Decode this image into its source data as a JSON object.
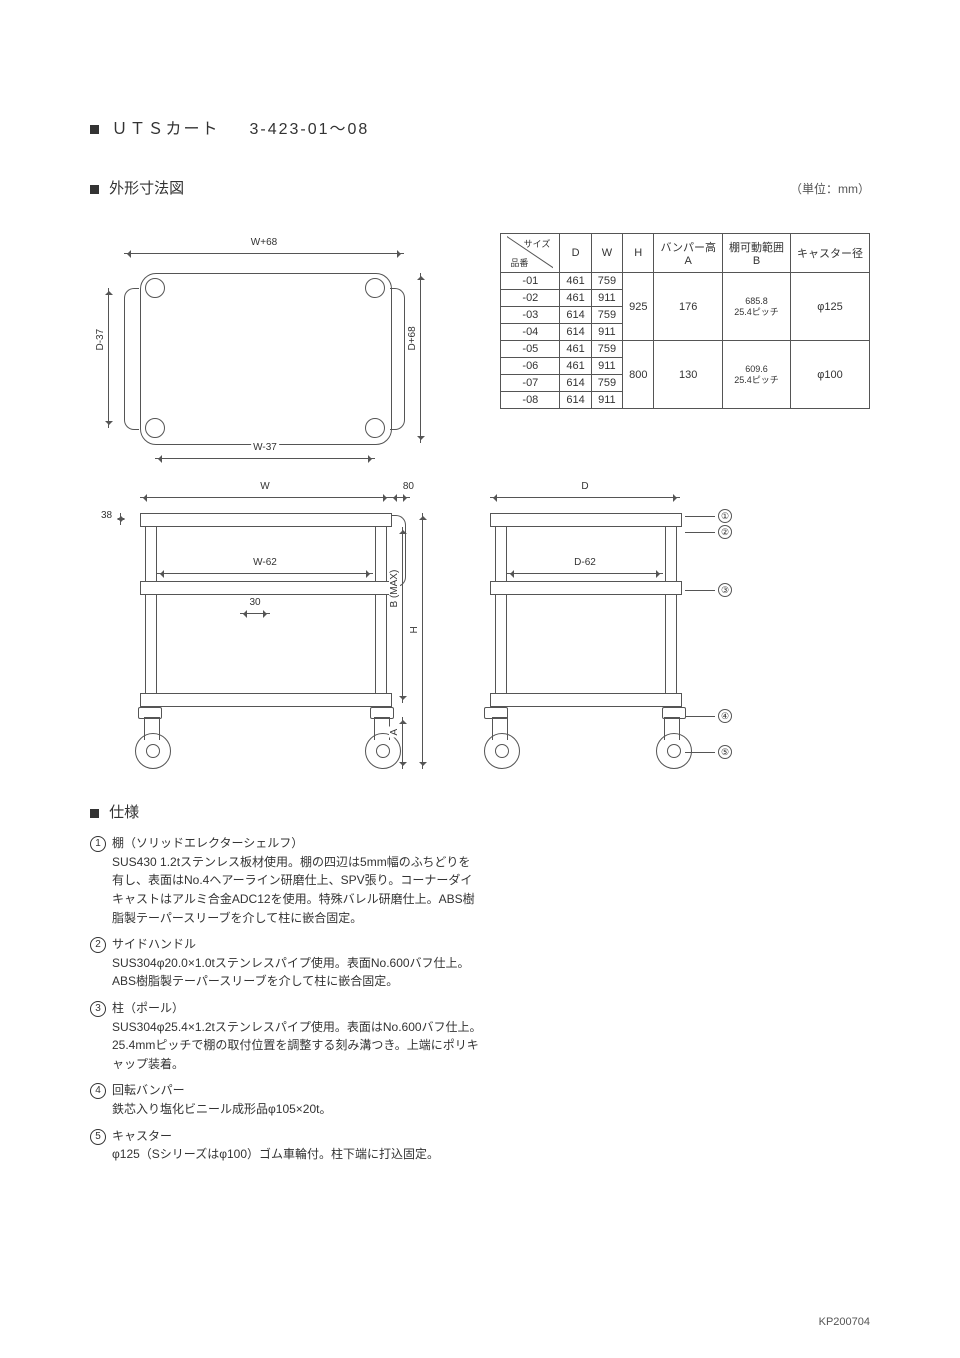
{
  "title": {
    "product": "ＵＴＳカート",
    "model_range": "3-423-01～08"
  },
  "section": {
    "drawing_heading": "外形寸法図",
    "unit_label": "（単位：mm）",
    "spec_heading": "仕様"
  },
  "footer": {
    "code": "KP200704"
  },
  "colors": {
    "stroke": "#555555",
    "text": "#333333",
    "bg": "#ffffff"
  },
  "top_view": {
    "dim_top": "W+68",
    "dim_bottom": "W-37",
    "dim_left": "D-37",
    "dim_right": "D+68"
  },
  "front_view": {
    "dim_top_w": "W",
    "dim_handle": "80",
    "dim_inner_w": "W-62",
    "dim_t38": "38",
    "dim_t30": "30",
    "dim_h": "H",
    "dim_b": "B (MAX)",
    "dim_a": "A"
  },
  "side_view": {
    "dim_top_d": "D",
    "dim_inner_d": "D-62",
    "callouts": [
      "①",
      "②",
      "③",
      "④",
      "⑤"
    ]
  },
  "table": {
    "header_diag_size": "サイズ",
    "header_diag_pn": "品番",
    "cols": [
      "D",
      "W",
      "H",
      "バンパー高\nA",
      "棚可動範囲\nB",
      "キャスター径"
    ],
    "groups": [
      {
        "rows": [
          {
            "pn": "-01",
            "D": "461",
            "W": "759"
          },
          {
            "pn": "-02",
            "D": "461",
            "W": "911"
          },
          {
            "pn": "-03",
            "D": "614",
            "W": "759"
          },
          {
            "pn": "-04",
            "D": "614",
            "W": "911"
          }
        ],
        "H": "925",
        "A": "176",
        "B": "685.8",
        "Bpitch": "25.4ピッチ",
        "caster": "φ125"
      },
      {
        "rows": [
          {
            "pn": "-05",
            "D": "461",
            "W": "759"
          },
          {
            "pn": "-06",
            "D": "461",
            "W": "911"
          },
          {
            "pn": "-07",
            "D": "614",
            "W": "759"
          },
          {
            "pn": "-08",
            "D": "614",
            "W": "911"
          }
        ],
        "H": "800",
        "A": "130",
        "B": "609.6",
        "Bpitch": "25.4ピッチ",
        "caster": "φ100"
      }
    ]
  },
  "spec": {
    "items": [
      {
        "n": "1",
        "head": "棚（ソリッドエレクターシェルフ）",
        "body": "SUS430 1.2tステンレス板材使用。棚の四辺は5mm幅のふちどりを有し、表面はNo.4ヘアーライン研磨仕上、SPV張り。コーナーダイキャストはアルミ合金ADC12を使用。特殊バレル研磨仕上。ABS樹脂製テーパースリーブを介して柱に嵌合固定。"
      },
      {
        "n": "2",
        "head": "サイドハンドル",
        "body": "SUS304φ20.0×1.0tステンレスパイプ使用。表面No.600バフ仕上。ABS樹脂製テーパースリーブを介して柱に嵌合固定。"
      },
      {
        "n": "3",
        "head": "柱（ポール）",
        "body": "SUS304φ25.4×1.2tステンレスパイプ使用。表面はNo.600バフ仕上。25.4mmピッチで棚の取付位置を調整する刻み溝つき。上端にポリキャップ装着。"
      },
      {
        "n": "4",
        "head": "回転バンパー",
        "body": "鉄芯入り塩化ビニール成形品φ105×20t。"
      },
      {
        "n": "5",
        "head": "キャスター",
        "body": "φ125（Sシリーズはφ100）ゴム車輪付。柱下端に打込固定。"
      }
    ]
  }
}
